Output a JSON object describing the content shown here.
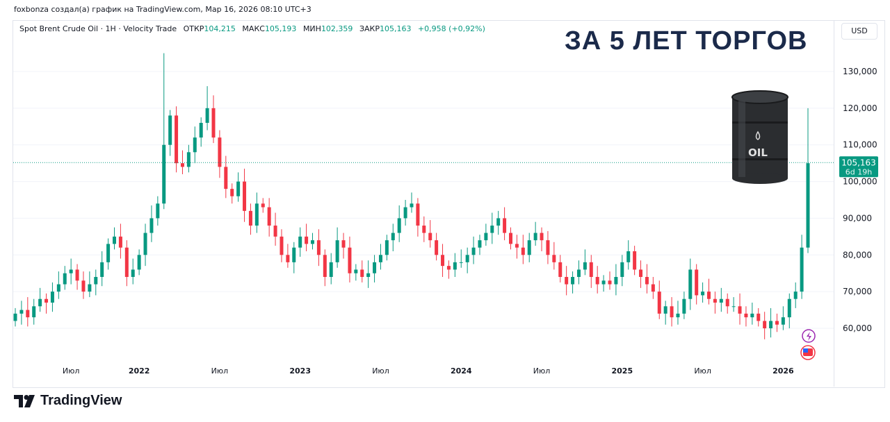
{
  "credit": "foxbonza создал(а) график на TradingView.com, Мар 16, 2026 08:10 UTC+3",
  "legend": {
    "symbol": "Spot Brent Crude Oil · 1H · Velocity Trade",
    "open_label": "ОТКР",
    "open": "104,215",
    "high_label": "МАКС",
    "high": "105,193",
    "low_label": "МИН",
    "low": "102,359",
    "close_label": "ЗАКР",
    "close": "105,163",
    "change": "+0,958 (+0,92%)"
  },
  "overlay_title": "ЗА 5 ЛЕТ ТОРГОВ",
  "barrel_text": "OIL",
  "currency_button": "USD",
  "price_tag": {
    "price": "105,163",
    "countdown": "6d 19h"
  },
  "brand": "TradingView",
  "colors": {
    "up": "#089981",
    "down": "#f23645",
    "title": "#1b2a4a",
    "grid": "#f0f3fa"
  },
  "icons": [
    "flash-icon",
    "us-flag-icon"
  ],
  "chart_data": {
    "type": "candlestick",
    "title": "Spot Brent Crude Oil",
    "ylim": [
      52,
      136
    ],
    "grid": true,
    "y_ticks": [
      "60,000",
      "70,000",
      "80,000",
      "90,000",
      "100,000",
      "110,000",
      "120,000",
      "130,000"
    ],
    "y_tick_values": [
      60,
      70,
      80,
      90,
      100,
      110,
      120,
      130
    ],
    "x_ticks": [
      "Июл",
      "2022",
      "Июл",
      "2023",
      "Июл",
      "2024",
      "Июл",
      "2025",
      "Июл",
      "2026"
    ],
    "last_price": 105.163,
    "first_open": 62,
    "closes": [
      64,
      65,
      63,
      66,
      68,
      67,
      70,
      72,
      75,
      76,
      73,
      70,
      72,
      74,
      78,
      83,
      85,
      82,
      74,
      76,
      80,
      86,
      90,
      94,
      110,
      118,
      105,
      104,
      108,
      112,
      116,
      120,
      112,
      104,
      98,
      96,
      100,
      92,
      88,
      94,
      93,
      88,
      85,
      80,
      78,
      82,
      85,
      83,
      84,
      80,
      74,
      78,
      84,
      82,
      75,
      76,
      74,
      75,
      78,
      80,
      84,
      86,
      90,
      93,
      94,
      88,
      86,
      84,
      80,
      77,
      76,
      78,
      78,
      80,
      82,
      84,
      86,
      88,
      90,
      86,
      83,
      82,
      80,
      84,
      86,
      84,
      80,
      78,
      74,
      72,
      74,
      76,
      78,
      74,
      72,
      73,
      72,
      74,
      78,
      81,
      76,
      74,
      72,
      70,
      64,
      66,
      63,
      64,
      68,
      76,
      69,
      70,
      68,
      67,
      68,
      66,
      66,
      64,
      63,
      64,
      62,
      60,
      62,
      61,
      63,
      68,
      70,
      82,
      105
    ],
    "notable_highs": [
      {
        "index": 24,
        "high": 135
      },
      {
        "index": 31,
        "high": 126
      },
      {
        "index": 128,
        "high": 120
      }
    ]
  }
}
